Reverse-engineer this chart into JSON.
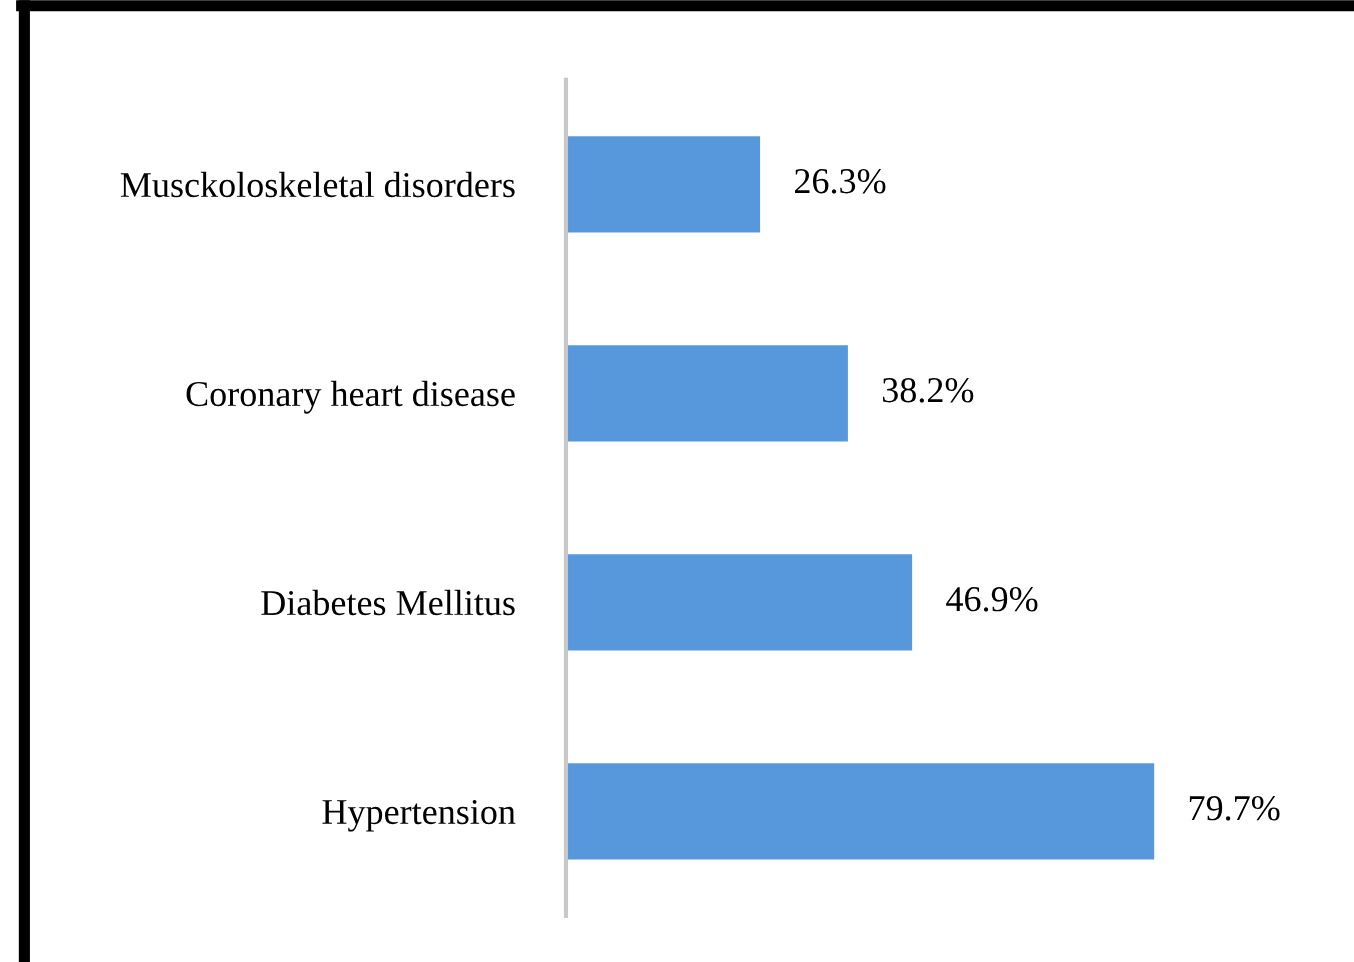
{
  "chart_data": {
    "type": "bar",
    "orientation": "horizontal",
    "categories": [
      "Musckoloskeletal disorders",
      "Coronary heart disease",
      "Diabetes Mellitus",
      "Hypertension"
    ],
    "values": [
      26.3,
      38.2,
      46.9,
      79.7
    ],
    "value_labels": [
      "26.3%",
      "38.2%",
      "46.9%",
      "79.7%"
    ],
    "color": "#5797dc"
  }
}
